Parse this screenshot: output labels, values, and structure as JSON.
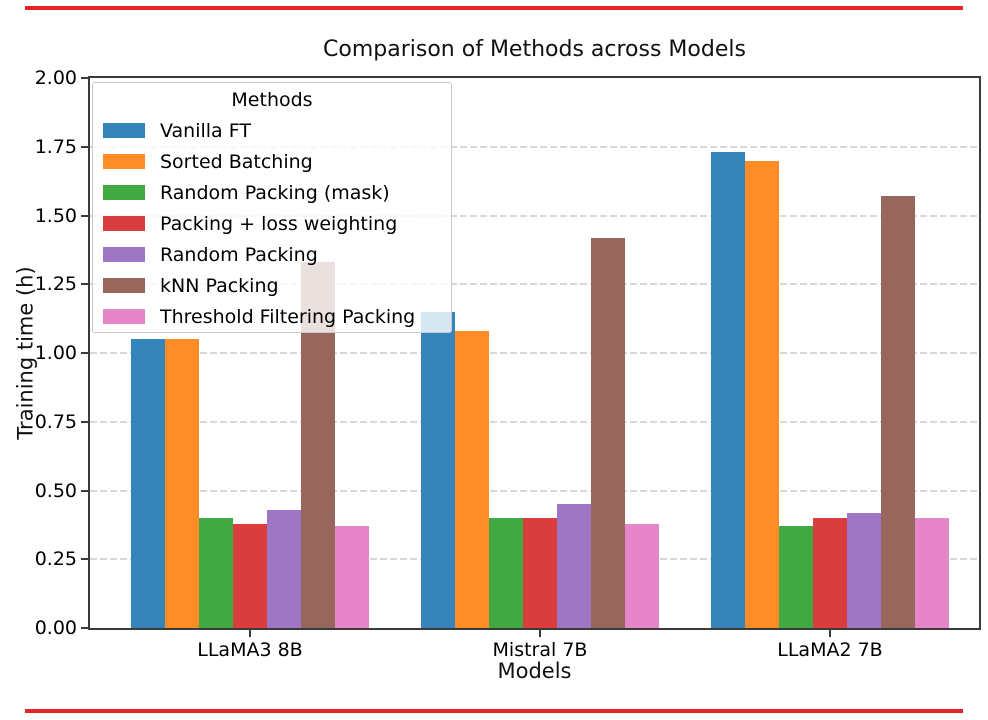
{
  "page": {
    "background": "#ffffff",
    "red_strip_color": "#e42528"
  },
  "chart_data": {
    "type": "bar",
    "title": "Comparison of Methods across Models",
    "xlabel": "Models",
    "ylabel": "Training time (h)",
    "categories": [
      "LLaMA3 8B",
      "Mistral 7B",
      "LLaMA2 7B"
    ],
    "ylim": [
      0,
      2.0
    ],
    "yticks": [
      "0.00",
      "0.25",
      "0.50",
      "0.75",
      "1.00",
      "1.25",
      "1.50",
      "1.75",
      "2.00"
    ],
    "grid": "horizontal-dashed",
    "legend_title": "Methods",
    "legend_position": "upper-left",
    "series": [
      {
        "name": "Vanilla FT",
        "color": "#3585BB",
        "values": [
          1.05,
          1.15,
          1.73
        ]
      },
      {
        "name": "Sorted Batching",
        "color": "#FF8C26",
        "values": [
          1.05,
          1.08,
          1.7
        ]
      },
      {
        "name": "Random Packing (mask)",
        "color": "#41A941",
        "values": [
          0.4,
          0.4,
          0.37
        ]
      },
      {
        "name": "Packing + loss weighting",
        "color": "#DA3D3D",
        "values": [
          0.38,
          0.4,
          0.4
        ]
      },
      {
        "name": "Random Packing",
        "color": "#9F76C4",
        "values": [
          0.43,
          0.45,
          0.42
        ]
      },
      {
        "name": "kNN Packing",
        "color": "#97675D",
        "values": [
          1.33,
          1.42,
          1.57
        ]
      },
      {
        "name": "Threshold Filtering Packing",
        "color": "#E685C8",
        "values": [
          0.37,
          0.38,
          0.4
        ]
      }
    ]
  }
}
